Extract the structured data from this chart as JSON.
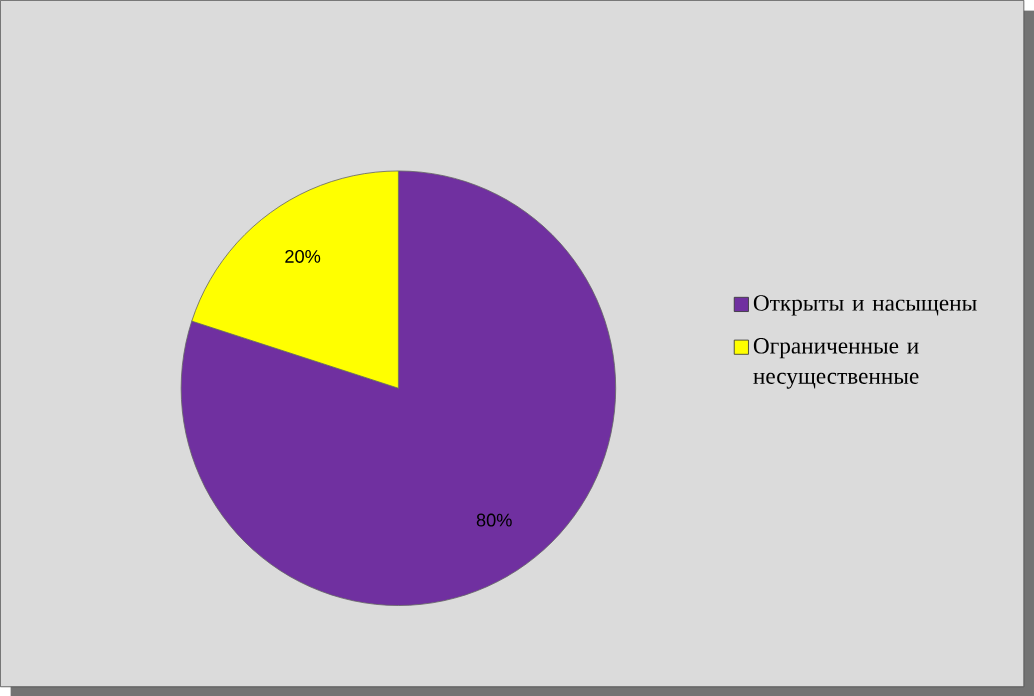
{
  "chart_data": {
    "type": "pie",
    "categories": [
      "Открыты и насыщены",
      "Ограниченные и несущественные"
    ],
    "values": [
      80,
      20
    ],
    "colors": [
      "#7030a0",
      "#ffff00"
    ],
    "value_labels": [
      "80%",
      "20%"
    ],
    "legend": "right"
  }
}
